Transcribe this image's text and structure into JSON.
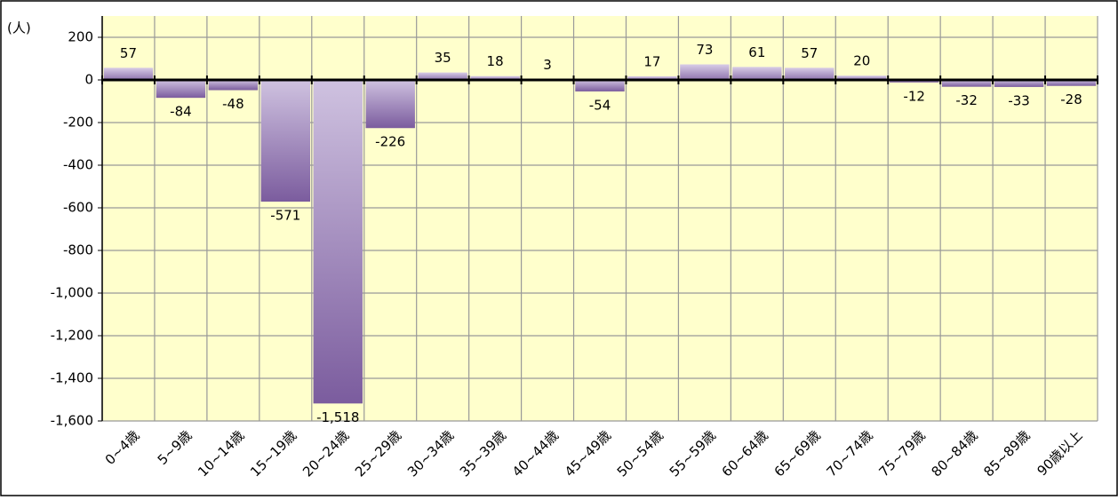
{
  "chart_data": {
    "type": "bar",
    "y_axis_label": "(人)",
    "categories": [
      "0~4歳",
      "5~9歳",
      "10~14歳",
      "15~19歳",
      "20~24歳",
      "25~29歳",
      "30~34歳",
      "35~39歳",
      "40~44歳",
      "45~49歳",
      "50~54歳",
      "55~59歳",
      "60~64歳",
      "65~69歳",
      "70~74歳",
      "75~79歳",
      "80~84歳",
      "85~89歳",
      "90歳以上"
    ],
    "values": [
      57,
      -84,
      -48,
      -571,
      -1518,
      -226,
      35,
      18,
      3,
      -54,
      17,
      73,
      61,
      57,
      20,
      -12,
      -32,
      -33,
      -28
    ],
    "value_labels": [
      "57",
      "-84",
      "-48",
      "-571",
      "-1,518",
      "-226",
      "35",
      "18",
      "3",
      "-54",
      "17",
      "73",
      "61",
      "57",
      "20",
      "-12",
      "-32",
      "-33",
      "-28"
    ],
    "color": "#7b5c9e",
    "ylim": [
      -1600,
      200
    ],
    "yticks": [
      200,
      0,
      -200,
      -400,
      -600,
      -800,
      {
        "value": -1000,
        "label": "-1,000"
      },
      {
        "value": -1200,
        "label": "-1,200"
      },
      {
        "value": -1400,
        "label": "-1,400"
      },
      {
        "value": -1600,
        "label": "-1,600"
      }
    ],
    "grid": true
  }
}
